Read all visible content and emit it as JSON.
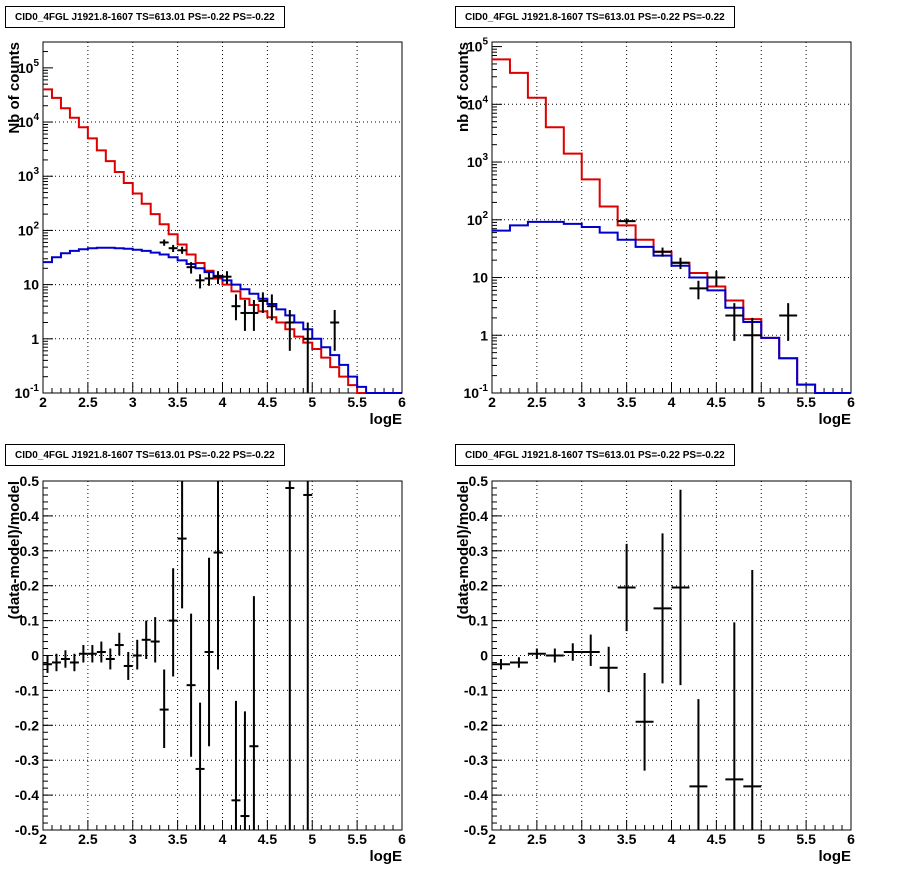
{
  "chart_data": [
    {
      "id": "counts-left",
      "type": "line",
      "title": "CID0_4FGL J1921.8-1607 TS=613.01 PS=-0.22 PS=-0.22",
      "xlabel": "logE",
      "ylabel": "Nb of counts",
      "xlim": [
        2,
        6
      ],
      "ylim": [
        0.1,
        300000
      ],
      "log_y": true,
      "grid": true,
      "x_ticks": [
        "2",
        "2.5",
        "3",
        "3.5",
        "4",
        "4.5",
        "5",
        "5.5",
        "6"
      ],
      "y_ticks": [
        {
          "value": 0.1,
          "base": "10",
          "exp": "-1"
        },
        {
          "value": 1,
          "text": "1"
        },
        {
          "value": 10,
          "text": "10"
        },
        {
          "value": 100,
          "base": "10",
          "exp": "2"
        },
        {
          "value": 1000,
          "base": "10",
          "exp": "3"
        },
        {
          "value": 10000,
          "base": "10",
          "exp": "4"
        },
        {
          "value": 100000,
          "base": "10",
          "exp": "5"
        }
      ],
      "bin_edges": [
        2.0,
        2.1,
        2.2,
        2.3,
        2.4,
        2.5,
        2.6,
        2.7,
        2.8,
        2.9,
        3.0,
        3.1,
        3.2,
        3.3,
        3.4,
        3.5,
        3.6,
        3.7,
        3.8,
        3.9,
        4.0,
        4.1,
        4.2,
        4.3,
        4.4,
        4.5,
        4.6,
        4.7,
        4.8,
        4.9,
        5.0,
        5.1,
        5.2,
        5.3,
        5.4,
        5.5,
        5.6,
        5.7,
        5.8,
        5.9,
        6.0
      ],
      "series": [
        {
          "color": "#dd0000",
          "kind": "step",
          "values": [
            40000,
            28000,
            18000,
            12000,
            8000,
            5000,
            3000,
            1900,
            1200,
            750,
            480,
            310,
            200,
            130,
            85,
            55,
            36,
            25,
            18,
            13,
            10,
            7.5,
            5.5,
            4.2,
            3.2,
            2.5,
            2.0,
            1.5,
            1.1,
            0.85,
            0.65,
            0.45,
            0.3,
            0.2,
            0.14,
            0.1,
            0.1,
            0.1,
            0.1,
            0.1
          ]
        },
        {
          "color": "#0000cc",
          "kind": "step",
          "values": [
            26,
            32,
            38,
            42,
            45,
            47,
            48,
            48,
            47,
            46,
            44,
            42,
            39,
            36,
            32,
            28,
            24,
            20,
            17,
            14.5,
            12,
            10,
            8.2,
            6.8,
            5.5,
            4.4,
            3.5,
            2.7,
            2.0,
            1.5,
            1.0,
            0.7,
            0.5,
            0.33,
            0.2,
            0.13,
            0.1,
            0.1,
            0.1,
            0.1
          ]
        },
        {
          "color": "#000000",
          "kind": "points",
          "points": [
            {
              "x": 3.35,
              "y": 60,
              "xerr": 0.05,
              "ylo": 52,
              "yhi": 68
            },
            {
              "x": 3.45,
              "y": 47,
              "xerr": 0.05,
              "ylo": 40,
              "yhi": 54
            },
            {
              "x": 3.55,
              "y": 43,
              "xerr": 0.05,
              "ylo": 37,
              "yhi": 50
            },
            {
              "x": 3.65,
              "y": 21,
              "xerr": 0.05,
              "ylo": 16,
              "yhi": 26
            },
            {
              "x": 3.75,
              "y": 12,
              "xerr": 0.05,
              "ylo": 8.5,
              "yhi": 15.5
            },
            {
              "x": 3.85,
              "y": 13,
              "xerr": 0.05,
              "ylo": 9.5,
              "yhi": 16.5
            },
            {
              "x": 3.95,
              "y": 14,
              "xerr": 0.05,
              "ylo": 10.3,
              "yhi": 17.7
            },
            {
              "x": 4.05,
              "y": 14,
              "xerr": 0.05,
              "ylo": 10.3,
              "yhi": 17.7
            },
            {
              "x": 4.15,
              "y": 4,
              "xerr": 0.05,
              "ylo": 2.2,
              "yhi": 6.6
            },
            {
              "x": 4.25,
              "y": 3,
              "xerr": 0.05,
              "ylo": 1.4,
              "yhi": 5.2
            },
            {
              "x": 4.35,
              "y": 3,
              "xerr": 0.05,
              "ylo": 1.4,
              "yhi": 5.2
            },
            {
              "x": 4.45,
              "y": 5,
              "xerr": 0.05,
              "ylo": 3.0,
              "yhi": 7.2
            },
            {
              "x": 4.55,
              "y": 4,
              "xerr": 0.05,
              "ylo": 2.2,
              "yhi": 6.6
            },
            {
              "x": 4.75,
              "y": 2,
              "xerr": 0.05,
              "ylo": 0.6,
              "yhi": 3.4
            },
            {
              "x": 4.95,
              "y": 1,
              "xerr": 0.05,
              "ylo": 0.1,
              "yhi": 2.0
            },
            {
              "x": 5.25,
              "y": 2,
              "xerr": 0.05,
              "ylo": 0.6,
              "yhi": 3.4
            }
          ]
        }
      ]
    },
    {
      "id": "counts-right",
      "type": "line",
      "title": "CID0_4FGL J1921.8-1607 TS=613.01 PS=-0.22 PS=-0.22",
      "xlabel": "logE",
      "ylabel": "nb of counts",
      "xlim": [
        2,
        6
      ],
      "ylim": [
        0.1,
        120000
      ],
      "log_y": true,
      "grid": true,
      "x_ticks": [
        "2",
        "2.5",
        "3",
        "3.5",
        "4",
        "4.5",
        "5",
        "5.5",
        "6"
      ],
      "y_ticks": [
        {
          "value": 0.1,
          "base": "10",
          "exp": "-1"
        },
        {
          "value": 1,
          "text": "1"
        },
        {
          "value": 10,
          "text": "10"
        },
        {
          "value": 100,
          "base": "10",
          "exp": "2"
        },
        {
          "value": 1000,
          "base": "10",
          "exp": "3"
        },
        {
          "value": 10000,
          "base": "10",
          "exp": "4"
        },
        {
          "value": 100000,
          "base": "10",
          "exp": "5"
        }
      ],
      "bin_edges": [
        2.0,
        2.2,
        2.4,
        2.6,
        2.8,
        3.0,
        3.2,
        3.4,
        3.6,
        3.8,
        4.0,
        4.2,
        4.4,
        4.6,
        4.8,
        5.0,
        5.2,
        5.4,
        5.6,
        5.8,
        6.0
      ],
      "series": [
        {
          "color": "#dd0000",
          "kind": "step",
          "values": [
            60000,
            35000,
            13000,
            4000,
            1400,
            500,
            170,
            80,
            45,
            28,
            18,
            12,
            7,
            4,
            1.9,
            0.9,
            0.4,
            0.14,
            0.1,
            0.1
          ]
        },
        {
          "color": "#0000cc",
          "kind": "step",
          "values": [
            65,
            80,
            92,
            92,
            85,
            75,
            60,
            45,
            34,
            24,
            16,
            10,
            6,
            3,
            1.7,
            0.9,
            0.4,
            0.14,
            0.1,
            0.1
          ]
        },
        {
          "color": "#000000",
          "kind": "points",
          "points": [
            {
              "x": 3.5,
              "y": 95,
              "xerr": 0.1,
              "ylo": 85,
              "yhi": 105
            },
            {
              "x": 3.9,
              "y": 28,
              "xerr": 0.1,
              "ylo": 23,
              "yhi": 33
            },
            {
              "x": 4.1,
              "y": 18,
              "xerr": 0.1,
              "ylo": 14,
              "yhi": 22
            },
            {
              "x": 4.3,
              "y": 6.5,
              "xerr": 0.1,
              "ylo": 4.2,
              "yhi": 8.8
            },
            {
              "x": 4.5,
              "y": 10,
              "xerr": 0.1,
              "ylo": 7,
              "yhi": 13
            },
            {
              "x": 4.7,
              "y": 2.2,
              "xerr": 0.1,
              "ylo": 0.8,
              "yhi": 3.6
            },
            {
              "x": 4.9,
              "y": 1,
              "xerr": 0.1,
              "ylo": 0.1,
              "yhi": 2.0
            },
            {
              "x": 5.3,
              "y": 2.2,
              "xerr": 0.1,
              "ylo": 0.8,
              "yhi": 3.6
            }
          ]
        }
      ]
    },
    {
      "id": "residuals-left",
      "type": "scatter",
      "title": "CID0_4FGL J1921.8-1607 TS=613.01 PS=-0.22 PS=-0.22",
      "xlabel": "logE",
      "ylabel": "(data-model)/model",
      "xlim": [
        2,
        6
      ],
      "ylim": [
        -0.5,
        0.5
      ],
      "log_y": false,
      "grid": true,
      "x_ticks": [
        "2",
        "2.5",
        "3",
        "3.5",
        "4",
        "4.5",
        "5",
        "5.5",
        "6"
      ],
      "y_ticks": [
        {
          "value": -0.5,
          "text": "-0.5"
        },
        {
          "value": -0.4,
          "text": "-0.4"
        },
        {
          "value": -0.3,
          "text": "-0.3"
        },
        {
          "value": -0.2,
          "text": "-0.2"
        },
        {
          "value": -0.1,
          "text": "-0.1"
        },
        {
          "value": 0,
          "text": "0"
        },
        {
          "value": 0.1,
          "text": "0.1"
        },
        {
          "value": 0.2,
          "text": "0.2"
        },
        {
          "value": 0.3,
          "text": "0.3"
        },
        {
          "value": 0.4,
          "text": "0.4"
        },
        {
          "value": 0.5,
          "text": "0.5"
        }
      ],
      "series": [
        {
          "color": "#000000",
          "kind": "points",
          "points": [
            {
              "x": 2.05,
              "y": -0.025,
              "xerr": 0.05,
              "ylo": -0.05,
              "yhi": 0.0
            },
            {
              "x": 2.15,
              "y": -0.02,
              "xerr": 0.05,
              "ylo": -0.045,
              "yhi": 0.005
            },
            {
              "x": 2.25,
              "y": -0.01,
              "xerr": 0.05,
              "ylo": -0.035,
              "yhi": 0.015
            },
            {
              "x": 2.35,
              "y": -0.02,
              "xerr": 0.05,
              "ylo": -0.045,
              "yhi": 0.005
            },
            {
              "x": 2.45,
              "y": 0.005,
              "xerr": 0.05,
              "ylo": -0.02,
              "yhi": 0.03
            },
            {
              "x": 2.55,
              "y": 0.005,
              "xerr": 0.05,
              "ylo": -0.02,
              "yhi": 0.03
            },
            {
              "x": 2.65,
              "y": 0.01,
              "xerr": 0.05,
              "ylo": -0.02,
              "yhi": 0.04
            },
            {
              "x": 2.75,
              "y": -0.01,
              "xerr": 0.05,
              "ylo": -0.04,
              "yhi": 0.02
            },
            {
              "x": 2.85,
              "y": 0.03,
              "xerr": 0.05,
              "ylo": 0.0,
              "yhi": 0.065
            },
            {
              "x": 2.95,
              "y": -0.03,
              "xerr": 0.05,
              "ylo": -0.07,
              "yhi": 0.01
            },
            {
              "x": 3.05,
              "y": 0.0,
              "xerr": 0.05,
              "ylo": -0.04,
              "yhi": 0.045
            },
            {
              "x": 3.15,
              "y": 0.045,
              "xerr": 0.05,
              "ylo": -0.01,
              "yhi": 0.1
            },
            {
              "x": 3.25,
              "y": 0.04,
              "xerr": 0.05,
              "ylo": -0.02,
              "yhi": 0.11
            },
            {
              "x": 3.35,
              "y": -0.155,
              "xerr": 0.05,
              "ylo": -0.265,
              "yhi": -0.04
            },
            {
              "x": 3.45,
              "y": 0.1,
              "xerr": 0.05,
              "ylo": -0.06,
              "yhi": 0.25
            },
            {
              "x": 3.55,
              "y": 0.335,
              "xerr": 0.05,
              "ylo": 0.135,
              "yhi": 0.5
            },
            {
              "x": 3.65,
              "y": -0.085,
              "xerr": 0.05,
              "ylo": -0.29,
              "yhi": 0.12
            },
            {
              "x": 3.75,
              "y": -0.325,
              "xerr": 0.05,
              "ylo": -0.5,
              "yhi": -0.135
            },
            {
              "x": 3.85,
              "y": 0.01,
              "xerr": 0.05,
              "ylo": -0.26,
              "yhi": 0.28
            },
            {
              "x": 3.95,
              "y": 0.295,
              "xerr": 0.05,
              "ylo": -0.04,
              "yhi": 0.5
            },
            {
              "x": 4.15,
              "y": -0.415,
              "xerr": 0.05,
              "ylo": -0.5,
              "yhi": -0.13
            },
            {
              "x": 4.25,
              "y": -0.46,
              "xerr": 0.05,
              "ylo": -0.5,
              "yhi": -0.16
            },
            {
              "x": 4.35,
              "y": -0.26,
              "xerr": 0.05,
              "ylo": -0.5,
              "yhi": 0.17
            },
            {
              "x": 4.75,
              "y": 0.48,
              "xerr": 0.05,
              "ylo": -0.5,
              "yhi": 0.5
            },
            {
              "x": 4.95,
              "y": 0.46,
              "xerr": 0.05,
              "ylo": -0.5,
              "yhi": 0.5
            }
          ]
        }
      ]
    },
    {
      "id": "residuals-right",
      "type": "scatter",
      "title": "CID0_4FGL J1921.8-1607 TS=613.01 PS=-0.22 PS=-0.22",
      "xlabel": "logE",
      "ylabel": "(data-model)/model",
      "xlim": [
        2,
        6
      ],
      "ylim": [
        -0.5,
        0.5
      ],
      "log_y": false,
      "grid": true,
      "x_ticks": [
        "2",
        "2.5",
        "3",
        "3.5",
        "4",
        "4.5",
        "5",
        "5.5",
        "6"
      ],
      "y_ticks": [
        {
          "value": -0.5,
          "text": "-0.5"
        },
        {
          "value": -0.4,
          "text": "-0.4"
        },
        {
          "value": -0.3,
          "text": "-0.3"
        },
        {
          "value": -0.2,
          "text": "-0.2"
        },
        {
          "value": -0.1,
          "text": "-0.1"
        },
        {
          "value": 0,
          "text": "0"
        },
        {
          "value": 0.1,
          "text": "0.1"
        },
        {
          "value": 0.2,
          "text": "0.2"
        },
        {
          "value": 0.3,
          "text": "0.3"
        },
        {
          "value": 0.4,
          "text": "0.4"
        },
        {
          "value": 0.5,
          "text": "0.5"
        }
      ],
      "series": [
        {
          "color": "#000000",
          "kind": "points",
          "points": [
            {
              "x": 2.1,
              "y": -0.025,
              "xerr": 0.1,
              "ylo": -0.04,
              "yhi": -0.01
            },
            {
              "x": 2.3,
              "y": -0.02,
              "xerr": 0.1,
              "ylo": -0.035,
              "yhi": -0.005
            },
            {
              "x": 2.5,
              "y": 0.005,
              "xerr": 0.1,
              "ylo": -0.01,
              "yhi": 0.02
            },
            {
              "x": 2.7,
              "y": 0.0,
              "xerr": 0.1,
              "ylo": -0.02,
              "yhi": 0.02
            },
            {
              "x": 2.9,
              "y": 0.01,
              "xerr": 0.1,
              "ylo": -0.015,
              "yhi": 0.035
            },
            {
              "x": 3.1,
              "y": 0.01,
              "xerr": 0.1,
              "ylo": -0.03,
              "yhi": 0.06
            },
            {
              "x": 3.3,
              "y": -0.035,
              "xerr": 0.1,
              "ylo": -0.105,
              "yhi": 0.025
            },
            {
              "x": 3.5,
              "y": 0.195,
              "xerr": 0.1,
              "ylo": 0.07,
              "yhi": 0.32
            },
            {
              "x": 3.7,
              "y": -0.19,
              "xerr": 0.1,
              "ylo": -0.33,
              "yhi": -0.05
            },
            {
              "x": 3.9,
              "y": 0.135,
              "xerr": 0.1,
              "ylo": -0.08,
              "yhi": 0.35
            },
            {
              "x": 4.1,
              "y": 0.195,
              "xerr": 0.1,
              "ylo": -0.085,
              "yhi": 0.475
            },
            {
              "x": 4.3,
              "y": -0.375,
              "xerr": 0.1,
              "ylo": -0.5,
              "yhi": -0.125
            },
            {
              "x": 4.7,
              "y": -0.355,
              "xerr": 0.1,
              "ylo": -0.5,
              "yhi": 0.095
            },
            {
              "x": 4.9,
              "y": -0.375,
              "xerr": 0.1,
              "ylo": -0.5,
              "yhi": 0.245
            }
          ]
        }
      ]
    }
  ]
}
